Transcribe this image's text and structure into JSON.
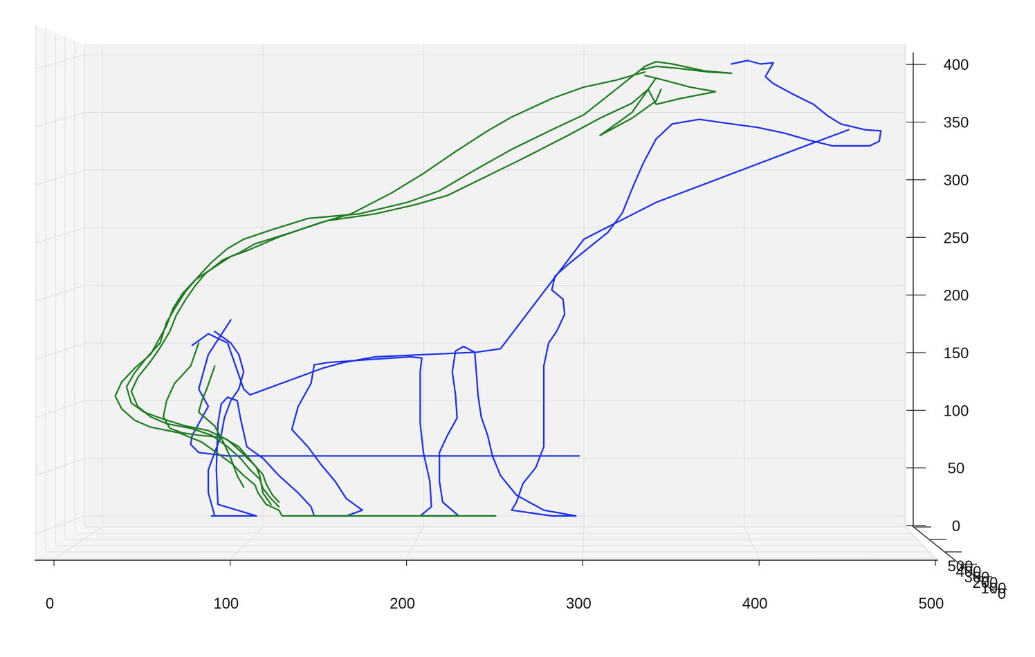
{
  "chart_data": {
    "type": "line",
    "title": "",
    "xlabel": "",
    "ylabel": "",
    "zlabel": "",
    "grid": true,
    "background_pane": "#f2f2f2",
    "x_axis": {
      "range": [
        0,
        500
      ],
      "ticks": [
        0,
        100,
        200,
        300,
        400,
        500
      ],
      "tick_labels": [
        "0",
        "100",
        "200",
        "300",
        "400",
        "500"
      ]
    },
    "y_axis": {
      "range": [
        0,
        400
      ],
      "ticks": [
        0,
        50,
        100,
        150,
        200,
        250,
        300,
        350,
        400
      ],
      "tick_labels": [
        "0",
        "50",
        "100",
        "150",
        "200",
        "250",
        "300",
        "350",
        "400"
      ]
    },
    "z_axis": {
      "tick_labels": [
        "500",
        "400",
        "300",
        "200",
        "100",
        "0"
      ]
    },
    "series": [
      {
        "color": "#1a2fe6",
        "points": [
          [
            392,
            392
          ],
          [
            402,
            395
          ],
          [
            410,
            392
          ],
          [
            418,
            393
          ],
          [
            413,
            381
          ],
          [
            418,
            375
          ],
          [
            430,
            366
          ],
          [
            443,
            357
          ],
          [
            452,
            347
          ],
          [
            460,
            340
          ],
          [
            475,
            335
          ],
          [
            485,
            334
          ],
          [
            484,
            325
          ],
          [
            478,
            321
          ],
          [
            455,
            321
          ],
          [
            440,
            326
          ],
          [
            425,
            332
          ],
          [
            408,
            337
          ],
          [
            392,
            340
          ],
          [
            372,
            344
          ],
          [
            355,
            340
          ],
          [
            345,
            327
          ],
          [
            337,
            306
          ],
          [
            331,
            287
          ],
          [
            324,
            263
          ],
          [
            315,
            246
          ],
          [
            306,
            236
          ],
          [
            298,
            227
          ],
          [
            290,
            218
          ],
          [
            282,
            208
          ],
          [
            280,
            196
          ],
          [
            287,
            188
          ],
          [
            288,
            175
          ],
          [
            283,
            160
          ],
          [
            278,
            150
          ],
          [
            275,
            130
          ],
          [
            275,
            100
          ],
          [
            275,
            60
          ],
          [
            270,
            42
          ],
          [
            262,
            28
          ],
          [
            258,
            12
          ],
          [
            255,
            5
          ],
          [
            280,
            0
          ],
          [
            295,
            0
          ],
          [
            275,
            5
          ],
          [
            258,
            18
          ],
          [
            248,
            35
          ],
          [
            243,
            52
          ],
          [
            240,
            70
          ],
          [
            236,
            86
          ],
          [
            234,
            105
          ],
          [
            233,
            124
          ],
          [
            232,
            142
          ],
          [
            225,
            147
          ],
          [
            220,
            143
          ],
          [
            218,
            125
          ],
          [
            220,
            105
          ],
          [
            221,
            85
          ],
          [
            215,
            70
          ],
          [
            210,
            55
          ],
          [
            210,
            30
          ],
          [
            212,
            12
          ],
          [
            222,
            0
          ],
          [
            198,
            0
          ],
          [
            205,
            8
          ],
          [
            204,
            30
          ],
          [
            200,
            55
          ],
          [
            198,
            80
          ],
          [
            198,
            100
          ],
          [
            198,
            125
          ],
          [
            199,
            137
          ],
          [
            192,
            138
          ],
          [
            170,
            136
          ],
          [
            140,
            133
          ],
          [
            132,
            131
          ],
          [
            130,
            115
          ],
          [
            122,
            95
          ],
          [
            118,
            75
          ],
          [
            128,
            60
          ],
          [
            136,
            45
          ],
          [
            145,
            30
          ],
          [
            152,
            15
          ],
          [
            162,
            5
          ],
          [
            152,
            0
          ],
          [
            132,
            0
          ],
          [
            130,
            8
          ],
          [
            122,
            20
          ],
          [
            110,
            35
          ],
          [
            100,
            50
          ],
          [
            90,
            60
          ],
          [
            86,
            85
          ],
          [
            84,
            100
          ],
          [
            78,
            103
          ],
          [
            74,
            97
          ],
          [
            72,
            80
          ],
          [
            71,
            40
          ],
          [
            72,
            10
          ],
          [
            96,
            0
          ],
          [
            68,
            0
          ]
        ]
      },
      {
        "color": "#1a2fe6",
        "points": [
          [
            80,
            170
          ],
          [
            66,
            140
          ],
          [
            60,
            110
          ],
          [
            66,
            95
          ],
          [
            60,
            80
          ],
          [
            56,
            70
          ],
          [
            55,
            62
          ],
          [
            60,
            55
          ],
          [
            78,
            52
          ],
          [
            110,
            52
          ],
          [
            135,
            52
          ],
          [
            165,
            52
          ],
          [
            200,
            52
          ],
          [
            230,
            52
          ],
          [
            265,
            52
          ],
          [
            297,
            52
          ]
        ]
      },
      {
        "color": "#1a2fe6",
        "points": [
          [
            70,
            160
          ],
          [
            80,
            150
          ],
          [
            85,
            140
          ],
          [
            88,
            125
          ],
          [
            85,
            110
          ],
          [
            80,
            100
          ],
          [
            76,
            85
          ],
          [
            74,
            70
          ],
          [
            70,
            55
          ],
          [
            66,
            40
          ],
          [
            66,
            20
          ],
          [
            70,
            0
          ]
        ]
      },
      {
        "color": "#1a2fe6",
        "points": [
          [
            56,
            148
          ],
          [
            66,
            158
          ],
          [
            78,
            150
          ],
          [
            88,
            110
          ],
          [
            92,
            105
          ],
          [
            137,
            128
          ],
          [
            150,
            133
          ],
          [
            170,
            138
          ],
          [
            233,
            142
          ],
          [
            248,
            145
          ],
          [
            300,
            240
          ],
          [
            345,
            272
          ],
          [
            440,
            322
          ],
          [
            465,
            335
          ]
        ]
      },
      {
        "color": "#1e7a1e",
        "points": [
          [
            338,
            385
          ],
          [
            330,
            382
          ],
          [
            320,
            378
          ],
          [
            300,
            372
          ],
          [
            280,
            362
          ],
          [
            255,
            346
          ],
          [
            240,
            334
          ],
          [
            220,
            316
          ],
          [
            200,
            297
          ],
          [
            180,
            280
          ],
          [
            155,
            262
          ],
          [
            135,
            254
          ],
          [
            110,
            242
          ],
          [
            90,
            230
          ],
          [
            80,
            225
          ],
          [
            70,
            216
          ],
          [
            58,
            205
          ],
          [
            50,
            193
          ],
          [
            44,
            180
          ],
          [
            40,
            165
          ],
          [
            34,
            150
          ],
          [
            30,
            140
          ],
          [
            20,
            128
          ],
          [
            12,
            116
          ],
          [
            8,
            104
          ],
          [
            12,
            93
          ],
          [
            20,
            83
          ],
          [
            30,
            77
          ],
          [
            48,
            72
          ],
          [
            62,
            64
          ],
          [
            73,
            53
          ],
          [
            81,
            45
          ],
          [
            88,
            35
          ],
          [
            95,
            27
          ],
          [
            97,
            20
          ],
          [
            102,
            10
          ],
          [
            110,
            5
          ],
          [
            112,
            0
          ],
          [
            150,
            0
          ],
          [
            200,
            0
          ],
          [
            245,
            0
          ]
        ]
      },
      {
        "color": "#1e7a1e",
        "points": [
          [
            338,
            382
          ],
          [
            350,
            378
          ],
          [
            366,
            372
          ],
          [
            382,
            368
          ],
          [
            360,
            362
          ],
          [
            345,
            357
          ],
          [
            340,
            370
          ],
          [
            330,
            358
          ],
          [
            310,
            345
          ],
          [
            290,
            330
          ],
          [
            262,
            310
          ],
          [
            240,
            295
          ],
          [
            215,
            278
          ],
          [
            195,
            270
          ],
          [
            170,
            262
          ],
          [
            140,
            256
          ],
          [
            118,
            246
          ],
          [
            95,
            236
          ],
          [
            85,
            228
          ],
          [
            75,
            222
          ],
          [
            64,
            210
          ],
          [
            58,
            200
          ],
          [
            52,
            188
          ],
          [
            46,
            174
          ],
          [
            42,
            160
          ],
          [
            36,
            146
          ],
          [
            30,
            134
          ],
          [
            22,
            120
          ],
          [
            18,
            108
          ],
          [
            22,
            95
          ],
          [
            30,
            86
          ],
          [
            40,
            80
          ],
          [
            55,
            76
          ],
          [
            68,
            70
          ],
          [
            78,
            60
          ],
          [
            86,
            50
          ],
          [
            92,
            40
          ],
          [
            98,
            32
          ],
          [
            100,
            24
          ],
          [
            105,
            15
          ],
          [
            110,
            8
          ]
        ]
      },
      {
        "color": "#1e7a1e",
        "points": [
          [
            336,
            387
          ],
          [
            345,
            390
          ],
          [
            360,
            388
          ],
          [
            378,
            385
          ],
          [
            392,
            384
          ],
          [
            375,
            386
          ],
          [
            355,
            392
          ],
          [
            345,
            394
          ],
          [
            338,
            390
          ],
          [
            320,
            370
          ],
          [
            300,
            348
          ],
          [
            280,
            335
          ],
          [
            255,
            318
          ],
          [
            232,
            300
          ],
          [
            210,
            282
          ],
          [
            190,
            272
          ],
          [
            160,
            262
          ],
          [
            128,
            258
          ],
          [
            105,
            248
          ],
          [
            88,
            240
          ],
          [
            78,
            232
          ],
          [
            68,
            220
          ],
          [
            60,
            208
          ],
          [
            52,
            195
          ],
          [
            46,
            182
          ],
          [
            40,
            168
          ],
          [
            36,
            150
          ],
          [
            28,
            138
          ],
          [
            20,
            124
          ],
          [
            15,
            112
          ],
          [
            18,
            98
          ],
          [
            26,
            90
          ],
          [
            38,
            84
          ],
          [
            52,
            78
          ],
          [
            66,
            74
          ],
          [
            78,
            66
          ],
          [
            86,
            56
          ],
          [
            94,
            45
          ],
          [
            100,
            36
          ],
          [
            102,
            28
          ],
          [
            106,
            18
          ],
          [
            110,
            12
          ]
        ]
      },
      {
        "color": "#1e7a1e",
        "points": [
          [
            60,
            150
          ],
          [
            55,
            130
          ],
          [
            45,
            115
          ],
          [
            40,
            100
          ],
          [
            38,
            86
          ],
          [
            42,
            76
          ],
          [
            50,
            72
          ],
          [
            60,
            70
          ],
          [
            75,
            68
          ],
          [
            85,
            60
          ],
          [
            90,
            52
          ],
          [
            96,
            42
          ],
          [
            98,
            35
          ],
          [
            100,
            20
          ],
          [
            105,
            10
          ]
        ]
      },
      {
        "color": "#1e7a1e",
        "points": [
          [
            70,
            130
          ],
          [
            65,
            110
          ],
          [
            62,
            100
          ],
          [
            60,
            90
          ],
          [
            70,
            78
          ],
          [
            75,
            65
          ],
          [
            80,
            50
          ],
          [
            84,
            35
          ],
          [
            88,
            25
          ]
        ]
      },
      {
        "color": "#1e7a1e",
        "points": [
          [
            345,
            380
          ],
          [
            344,
            378
          ],
          [
            330,
            350
          ],
          [
            310,
            330
          ],
          [
            330,
            345
          ],
          [
            345,
            360
          ],
          [
            348,
            370
          ]
        ]
      }
    ]
  }
}
